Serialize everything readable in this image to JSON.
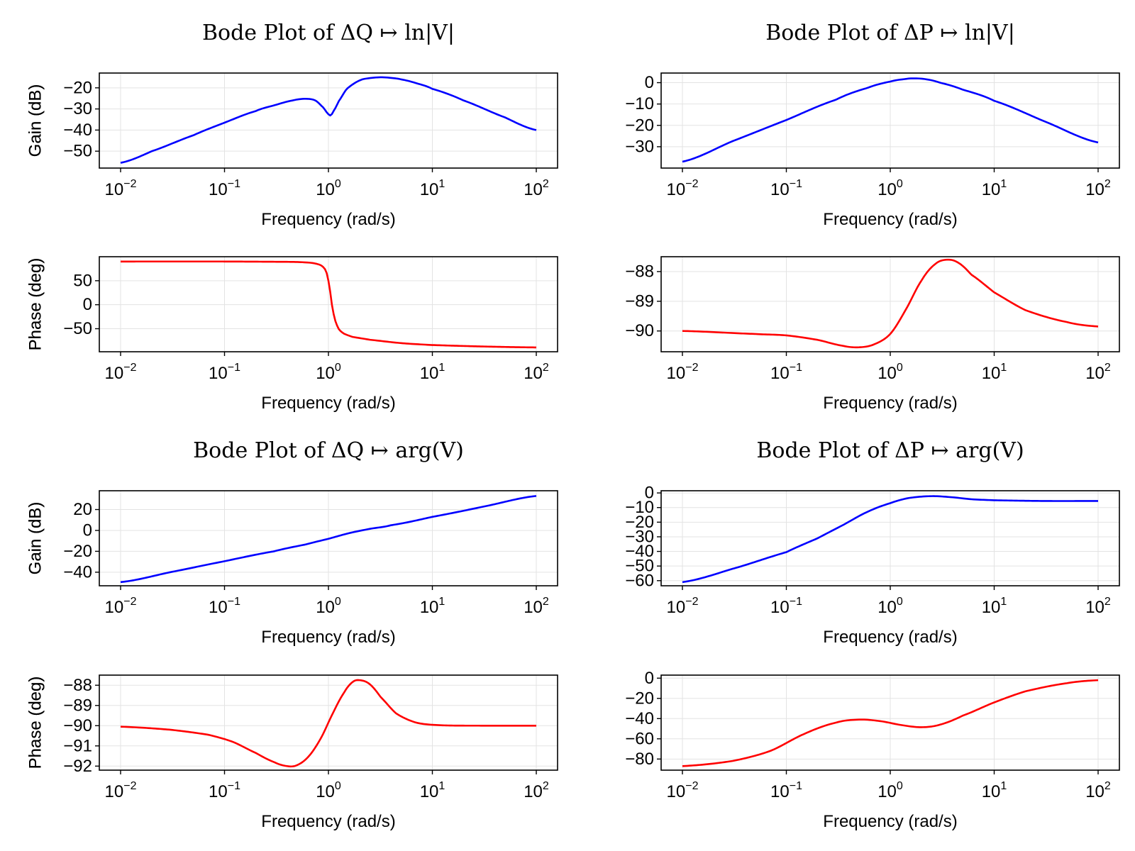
{
  "chart_data": [
    {
      "type": "line",
      "title": "Bode Plot of ΔQ ↦ ln|V|",
      "xscale": "log",
      "xlabel": "Frequency (rad/s)",
      "xlim": [
        0.01,
        100
      ],
      "xticks": [
        {
          "base": "10",
          "exp": "−2",
          "v": 0.01
        },
        {
          "base": "10",
          "exp": "−1",
          "v": 0.1
        },
        {
          "base": "10",
          "exp": "0",
          "v": 1
        },
        {
          "base": "10",
          "exp": "1",
          "v": 10
        },
        {
          "base": "10",
          "exp": "2",
          "v": 100
        }
      ],
      "gain": {
        "ylabel": "Gain (dB)",
        "color": "#0000ff",
        "ylim": [
          -58,
          -13
        ],
        "yticks": [
          {
            "v": -20,
            "label": "−20"
          },
          {
            "v": -30,
            "label": "−30"
          },
          {
            "v": -40,
            "label": "−40"
          },
          {
            "v": -50,
            "label": "−50"
          }
        ],
        "x": [
          0.01,
          0.02,
          0.05,
          0.1,
          0.2,
          0.3,
          0.45,
          0.6,
          0.75,
          0.9,
          1.0,
          1.05,
          1.12,
          1.25,
          1.5,
          2,
          2.5,
          3.2,
          4,
          5,
          7,
          10,
          20,
          50,
          100
        ],
        "y": [
          -55.5,
          -50,
          -42.5,
          -36.5,
          -31,
          -28.3,
          -26,
          -25.2,
          -26,
          -29.5,
          -32.5,
          -33,
          -31,
          -26.5,
          -20.5,
          -16.5,
          -15.4,
          -15,
          -15.3,
          -16,
          -17.8,
          -20.5,
          -26,
          -34,
          -40
        ]
      },
      "phase": {
        "ylabel": "Phase (deg)",
        "color": "#ff0000",
        "ylim": [
          -98,
          100
        ],
        "yticks": [
          {
            "v": 50,
            "label": "50"
          },
          {
            "v": 0,
            "label": "0"
          },
          {
            "v": -50,
            "label": "−50"
          }
        ],
        "x": [
          0.01,
          0.1,
          0.3,
          0.5,
          0.7,
          0.85,
          0.95,
          1.02,
          1.08,
          1.15,
          1.25,
          1.4,
          1.7,
          2.5,
          5,
          10,
          30,
          100
        ],
        "y": [
          90,
          90,
          89.5,
          89,
          87,
          82,
          70,
          40,
          0,
          -30,
          -50,
          -60,
          -67,
          -73,
          -80,
          -84,
          -87,
          -89
        ]
      }
    },
    {
      "type": "line",
      "title": "Bode Plot of ΔP ↦ ln|V|",
      "xscale": "log",
      "xlabel": "Frequency (rad/s)",
      "xlim": [
        0.01,
        100
      ],
      "xticks": [
        {
          "base": "10",
          "exp": "−2",
          "v": 0.01
        },
        {
          "base": "10",
          "exp": "−1",
          "v": 0.1
        },
        {
          "base": "10",
          "exp": "0",
          "v": 1
        },
        {
          "base": "10",
          "exp": "1",
          "v": 10
        },
        {
          "base": "10",
          "exp": "2",
          "v": 100
        }
      ],
      "gain": {
        "ylabel": "Gain (dB)",
        "color": "#0000ff",
        "ylim": [
          -40,
          4.5
        ],
        "yticks": [
          {
            "v": 0,
            "label": "0"
          },
          {
            "v": -10,
            "label": "−10"
          },
          {
            "v": -20,
            "label": "−20"
          },
          {
            "v": -30,
            "label": "−30"
          }
        ],
        "x": [
          0.01,
          0.03,
          0.1,
          0.3,
          0.6,
          1,
          1.4,
          1.7,
          2.2,
          3,
          5,
          10,
          30,
          100
        ],
        "y": [
          -37,
          -27.5,
          -17.5,
          -8,
          -2.5,
          0.5,
          1.7,
          2,
          1.6,
          0,
          -3.3,
          -8.5,
          -18,
          -28
        ]
      },
      "phase": {
        "ylabel": "Phase (deg)",
        "color": "#ff0000",
        "ylim": [
          -90.7,
          -87.5
        ],
        "yticks": [
          {
            "v": -88,
            "label": "−88"
          },
          {
            "v": -89,
            "label": "−89"
          },
          {
            "v": -90,
            "label": "−90"
          }
        ],
        "x": [
          0.01,
          0.05,
          0.1,
          0.2,
          0.35,
          0.5,
          0.7,
          1,
          1.4,
          2,
          2.7,
          3.5,
          4.5,
          6,
          10,
          20,
          50,
          100
        ],
        "y": [
          -90,
          -90.1,
          -90.15,
          -90.3,
          -90.5,
          -90.55,
          -90.45,
          -90.1,
          -89.3,
          -88.3,
          -87.75,
          -87.6,
          -87.7,
          -88.1,
          -88.7,
          -89.3,
          -89.7,
          -89.85
        ]
      }
    },
    {
      "type": "line",
      "title": "Bode Plot of ΔQ ↦ arg(V)",
      "xscale": "log",
      "xlabel": "Frequency (rad/s)",
      "xlim": [
        0.01,
        100
      ],
      "xticks": [
        {
          "base": "10",
          "exp": "−2",
          "v": 0.01
        },
        {
          "base": "10",
          "exp": "−1",
          "v": 0.1
        },
        {
          "base": "10",
          "exp": "0",
          "v": 1
        },
        {
          "base": "10",
          "exp": "1",
          "v": 10
        },
        {
          "base": "10",
          "exp": "2",
          "v": 100
        }
      ],
      "gain": {
        "ylabel": "Gain (dB)",
        "color": "#0000ff",
        "ylim": [
          -53,
          38
        ],
        "yticks": [
          {
            "v": 20,
            "label": "20"
          },
          {
            "v": 0,
            "label": "0"
          },
          {
            "v": -20,
            "label": "−20"
          },
          {
            "v": -40,
            "label": "−40"
          }
        ],
        "x": [
          0.01,
          0.03,
          0.1,
          0.3,
          0.6,
          1,
          1.6,
          2.5,
          4,
          10,
          30,
          100
        ],
        "y": [
          -49.5,
          -40,
          -29.5,
          -20,
          -13.5,
          -8,
          -2.5,
          1.5,
          5,
          13,
          22.5,
          33
        ]
      },
      "phase": {
        "ylabel": "Phase (deg)",
        "color": "#ff0000",
        "ylim": [
          -92.2,
          -87.5
        ],
        "yticks": [
          {
            "v": -88,
            "label": "−88"
          },
          {
            "v": -89,
            "label": "−89"
          },
          {
            "v": -90,
            "label": "−90"
          },
          {
            "v": -91,
            "label": "−91"
          },
          {
            "v": -92,
            "label": "−92"
          }
        ],
        "x": [
          0.01,
          0.03,
          0.07,
          0.12,
          0.2,
          0.3,
          0.4,
          0.5,
          0.65,
          0.85,
          1.1,
          1.4,
          1.7,
          2,
          2.5,
          3.2,
          4.5,
          7,
          12,
          30,
          100
        ],
        "y": [
          -90.05,
          -90.2,
          -90.45,
          -90.8,
          -91.35,
          -91.8,
          -92,
          -91.95,
          -91.5,
          -90.6,
          -89.4,
          -88.4,
          -87.85,
          -87.75,
          -87.95,
          -88.6,
          -89.4,
          -89.85,
          -89.98,
          -90,
          -90
        ]
      }
    },
    {
      "type": "line",
      "title": "Bode Plot of ΔP ↦ arg(V)",
      "xscale": "log",
      "xlabel": "Frequency (rad/s)",
      "xlim": [
        0.01,
        100
      ],
      "xticks": [
        {
          "base": "10",
          "exp": "−2",
          "v": 0.01
        },
        {
          "base": "10",
          "exp": "−1",
          "v": 0.1
        },
        {
          "base": "10",
          "exp": "0",
          "v": 1
        },
        {
          "base": "10",
          "exp": "1",
          "v": 10
        },
        {
          "base": "10",
          "exp": "2",
          "v": 100
        }
      ],
      "gain": {
        "ylabel": "Gain (dB)",
        "color": "#0000ff",
        "ylim": [
          -63.5,
          1.5
        ],
        "yticks": [
          {
            "v": 0,
            "label": "0"
          },
          {
            "v": -10,
            "label": "−10"
          },
          {
            "v": -20,
            "label": "−20"
          },
          {
            "v": -30,
            "label": "−30"
          },
          {
            "v": -40,
            "label": "−40"
          },
          {
            "v": -50,
            "label": "−50"
          },
          {
            "v": -60,
            "label": "−60"
          }
        ],
        "x": [
          0.01,
          0.03,
          0.1,
          0.2,
          0.35,
          0.6,
          1,
          1.5,
          2.5,
          4,
          6,
          10,
          30,
          100
        ],
        "y": [
          -61,
          -52,
          -40.5,
          -31,
          -22,
          -13,
          -7,
          -3.5,
          -2.2,
          -3,
          -4.3,
          -5,
          -5.5,
          -5.5
        ]
      },
      "phase": {
        "ylabel": "Phase (deg)",
        "color": "#ff0000",
        "ylim": [
          -91,
          3
        ],
        "yticks": [
          {
            "v": 0,
            "label": "0"
          },
          {
            "v": -20,
            "label": "−20"
          },
          {
            "v": -40,
            "label": "−40"
          },
          {
            "v": -60,
            "label": "−60"
          },
          {
            "v": -80,
            "label": "−80"
          }
        ],
        "x": [
          0.01,
          0.03,
          0.07,
          0.15,
          0.3,
          0.5,
          0.8,
          1.3,
          2,
          3,
          5,
          10,
          20,
          50,
          100
        ],
        "y": [
          -87,
          -82,
          -72,
          -55,
          -44,
          -41,
          -42.5,
          -46.5,
          -48.5,
          -46,
          -37,
          -24,
          -13,
          -5,
          -2
        ]
      }
    }
  ]
}
